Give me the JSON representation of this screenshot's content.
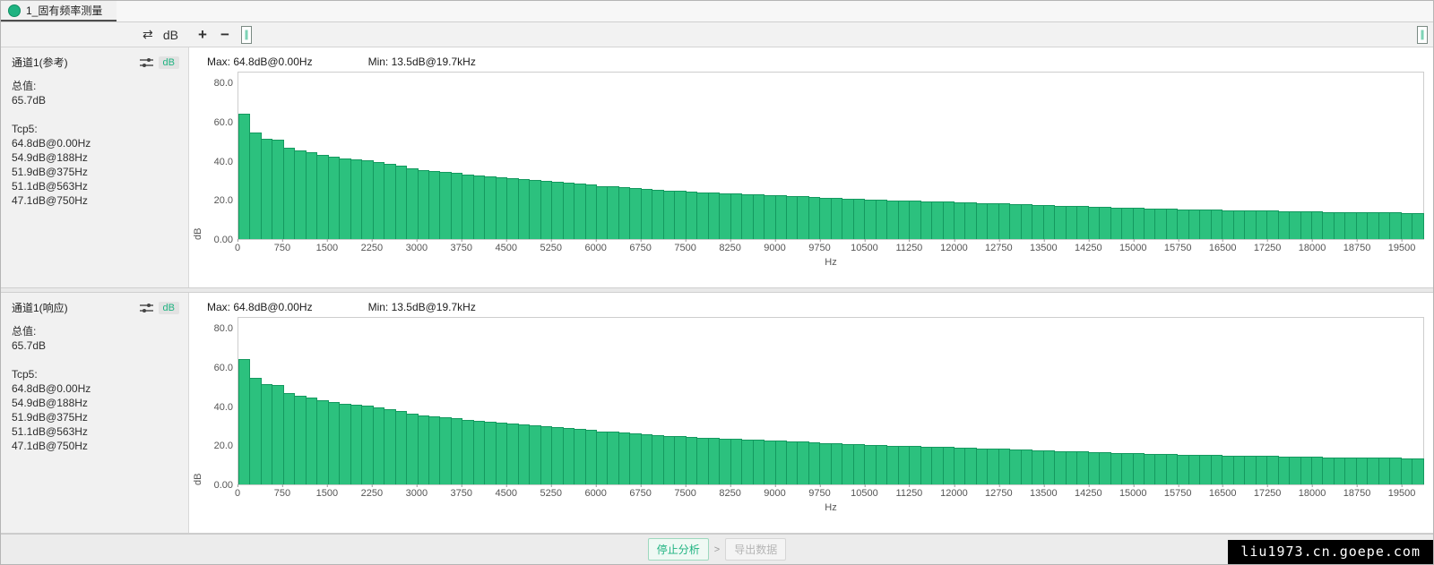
{
  "tab": {
    "label": "1_固有频率测量"
  },
  "toolbar": {
    "swap_icon": "⇄",
    "db_label": "dB",
    "zoom_in": "+",
    "zoom_out": "−",
    "handle_glyph": "∥"
  },
  "panels": [
    {
      "channel": "通道1(参考)",
      "db_badge": "dB",
      "total_label": "总值:",
      "total_value": "65.7dB",
      "tcp_label": "Tcp5:",
      "tcp_values": [
        "64.8dB@0.00Hz",
        "54.9dB@188Hz",
        "51.9dB@375Hz",
        "51.1dB@563Hz",
        "47.1dB@750Hz"
      ],
      "max_label": "Max: 64.8dB@0.00Hz",
      "min_label": "Min: 13.5dB@19.7kHz"
    },
    {
      "channel": "通道1(响应)",
      "db_badge": "dB",
      "total_label": "总值:",
      "total_value": "65.7dB",
      "tcp_label": "Tcp5:",
      "tcp_values": [
        "64.8dB@0.00Hz",
        "54.9dB@188Hz",
        "51.9dB@375Hz",
        "51.1dB@563Hz",
        "47.1dB@750Hz"
      ],
      "max_label": "Max: 64.8dB@0.00Hz",
      "min_label": "Min: 13.5dB@19.7kHz"
    }
  ],
  "chart_data": {
    "type": "bar",
    "title": "",
    "xlabel": "Hz",
    "ylabel": "dB",
    "applies_to_panels": [
      "通道1(参考)",
      "通道1(响应)"
    ],
    "x_start_hz": 0,
    "x_step_hz": 187.5,
    "x_span_hz": 19875,
    "ylim": [
      0,
      86
    ],
    "yticks_labels": [
      "80.0",
      "60.0",
      "40.0",
      "20.0",
      "0.00"
    ],
    "yticks_values": [
      80,
      60,
      40,
      20,
      0
    ],
    "xticks": [
      0,
      750,
      1500,
      2250,
      3000,
      3750,
      4500,
      5250,
      6000,
      6750,
      7500,
      8250,
      9000,
      9750,
      10500,
      11250,
      12000,
      12750,
      13500,
      14250,
      15000,
      15750,
      16500,
      17250,
      18000,
      18750,
      19500
    ],
    "values_db": [
      64.8,
      54.9,
      51.9,
      51.1,
      47.1,
      46.0,
      45.0,
      43.7,
      42.5,
      41.7,
      41.0,
      40.5,
      40.0,
      39.0,
      38.0,
      36.7,
      35.5,
      35.0,
      34.5,
      34.0,
      33.5,
      33.0,
      32.5,
      32.0,
      31.5,
      31.0,
      30.5,
      30.0,
      29.5,
      29.0,
      28.5,
      28.0,
      27.5,
      27.1,
      26.7,
      26.3,
      26.0,
      25.6,
      25.2,
      24.8,
      24.5,
      24.2,
      24.0,
      23.7,
      23.5,
      23.2,
      23.0,
      22.7,
      22.5,
      22.2,
      22.0,
      21.7,
      21.5,
      21.2,
      21.0,
      20.7,
      20.5,
      20.3,
      20.1,
      19.9,
      19.8,
      19.6,
      19.4,
      19.2,
      19.0,
      18.8,
      18.6,
      18.4,
      18.3,
      18.1,
      17.9,
      17.7,
      17.5,
      17.3,
      17.1,
      16.9,
      16.8,
      16.6,
      16.4,
      16.2,
      16.0,
      15.8,
      15.7,
      15.5,
      15.4,
      15.3,
      15.2,
      15.1,
      15.0,
      14.9,
      14.8,
      14.7,
      14.6,
      14.5,
      14.4,
      14.3,
      14.2,
      14.1,
      14.1,
      14.0,
      13.9,
      13.8,
      13.8,
      13.7,
      13.6,
      13.5
    ]
  },
  "footer": {
    "stop_button": "停止分析",
    "separator": ">",
    "export_button": "导出数据",
    "watermark": "liu1973.cn.goepe.com"
  },
  "colors": {
    "bar_fill": "#2cc17e",
    "bar_stroke": "#14995f",
    "accent_green": "#1fb381"
  }
}
